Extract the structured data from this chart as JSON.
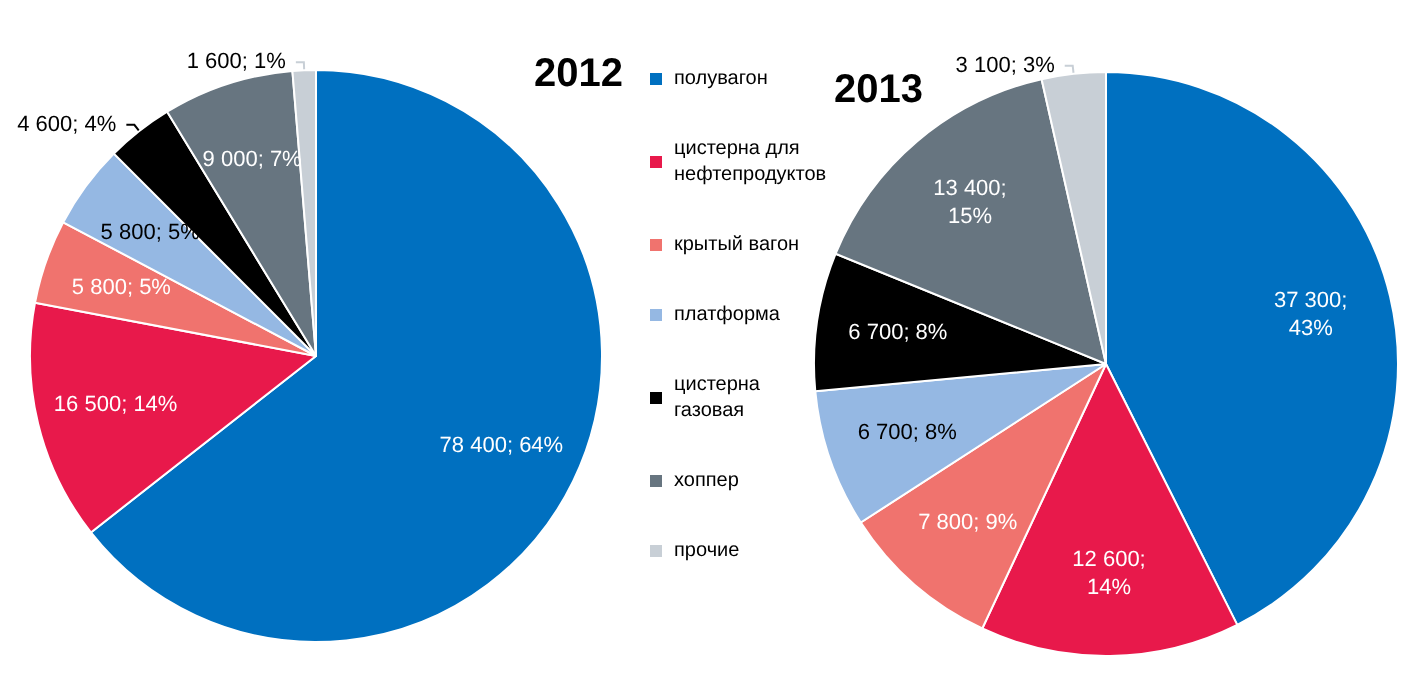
{
  "chart_data": {
    "type": "pie",
    "legend": "center",
    "categories": [
      "полувагон",
      "цистерна для нефтепродуктов",
      "крытый вагон",
      "платформа",
      "цистерна газовая",
      "хоппер",
      "прочие"
    ],
    "colors": [
      "#0070c0",
      "#e8194b",
      "#f0736e",
      "#95b8e3",
      "#000000",
      "#677580",
      "#c8cfd6"
    ],
    "series": [
      {
        "name": "2012",
        "values": [
          78400,
          16500,
          5800,
          5800,
          4600,
          9000,
          1600
        ],
        "value_labels": [
          "78 400; 64%",
          "16 500; 14%",
          "5 800; 5%",
          "5 800; 5%",
          "4 600; 4%",
          "9 000; 7%",
          "1 600; 1%"
        ]
      },
      {
        "name": "2013",
        "values": [
          37300,
          12600,
          7800,
          6700,
          6700,
          13400,
          3100
        ],
        "value_labels": [
          "37 300;\n43%",
          "12 600;\n14%",
          "7 800; 9%",
          "6 700; 8%",
          "6 700; 8%",
          "13 400;\n15%",
          "3 100; 3%"
        ]
      }
    ]
  }
}
